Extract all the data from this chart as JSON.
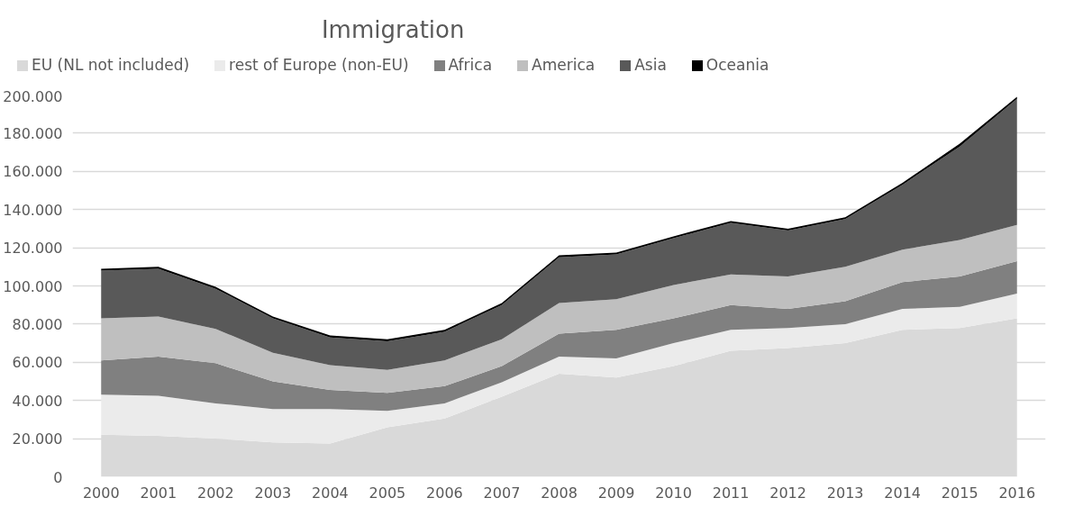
{
  "chart_data": {
    "type": "area",
    "stacked": true,
    "title": "Immigration",
    "categories": [
      "2000",
      "2001",
      "2002",
      "2003",
      "2004",
      "2005",
      "2006",
      "2007",
      "2008",
      "2009",
      "2010",
      "2011",
      "2012",
      "2013",
      "2014",
      "2015",
      "2016"
    ],
    "series": [
      {
        "name": "EU (NL not included)",
        "color": "#d9d9d9",
        "values": [
          22000,
          21500,
          20000,
          18000,
          17500,
          26000,
          30500,
          42000,
          54000,
          52000,
          58000,
          66000,
          67500,
          70000,
          77000,
          78000,
          83000
        ]
      },
      {
        "name": "rest of Europe (non-EU)",
        "color": "#ebebeb",
        "values": [
          21000,
          21000,
          18500,
          17500,
          18000,
          8500,
          8000,
          7500,
          9000,
          10000,
          12000,
          11000,
          10500,
          10000,
          11000,
          11000,
          13000
        ]
      },
      {
        "name": "Africa",
        "color": "#808080",
        "values": [
          18000,
          20500,
          21000,
          14500,
          10000,
          9500,
          9000,
          8500,
          12000,
          15000,
          13000,
          13000,
          10000,
          12000,
          14000,
          16000,
          17000
        ]
      },
      {
        "name": "America",
        "color": "#bfbfbf",
        "values": [
          22000,
          21000,
          18000,
          15000,
          13000,
          12000,
          13500,
          14000,
          16000,
          16000,
          17500,
          16000,
          17000,
          18000,
          17000,
          19000,
          19000
        ]
      },
      {
        "name": "Asia",
        "color": "#595959",
        "values": [
          25000,
          25000,
          21000,
          18000,
          14500,
          15000,
          15000,
          18000,
          24000,
          23500,
          24500,
          27000,
          24000,
          25000,
          34000,
          49000,
          66000
        ]
      },
      {
        "name": "Oceania",
        "color": "#000000",
        "values": [
          1000,
          1000,
          1000,
          1000,
          1000,
          1000,
          1000,
          1000,
          1000,
          1000,
          1000,
          1000,
          1000,
          1000,
          1000,
          1500,
          1000
        ]
      }
    ],
    "ylim": [
      0,
      200000
    ],
    "yticks": [
      {
        "value": 0,
        "label": "0"
      },
      {
        "value": 20000,
        "label": "20.000"
      },
      {
        "value": 40000,
        "label": "40.000"
      },
      {
        "value": 60000,
        "label": "60.000"
      },
      {
        "value": 80000,
        "label": "80.000"
      },
      {
        "value": 100000,
        "label": "100.000"
      },
      {
        "value": 120000,
        "label": "120.000"
      },
      {
        "value": 140000,
        "label": "140.000"
      },
      {
        "value": 160000,
        "label": "160.000"
      },
      {
        "value": 180000,
        "label": "180.000"
      },
      {
        "value": 200000,
        "label": "200.000"
      }
    ],
    "grid": "y",
    "legend": "top"
  }
}
